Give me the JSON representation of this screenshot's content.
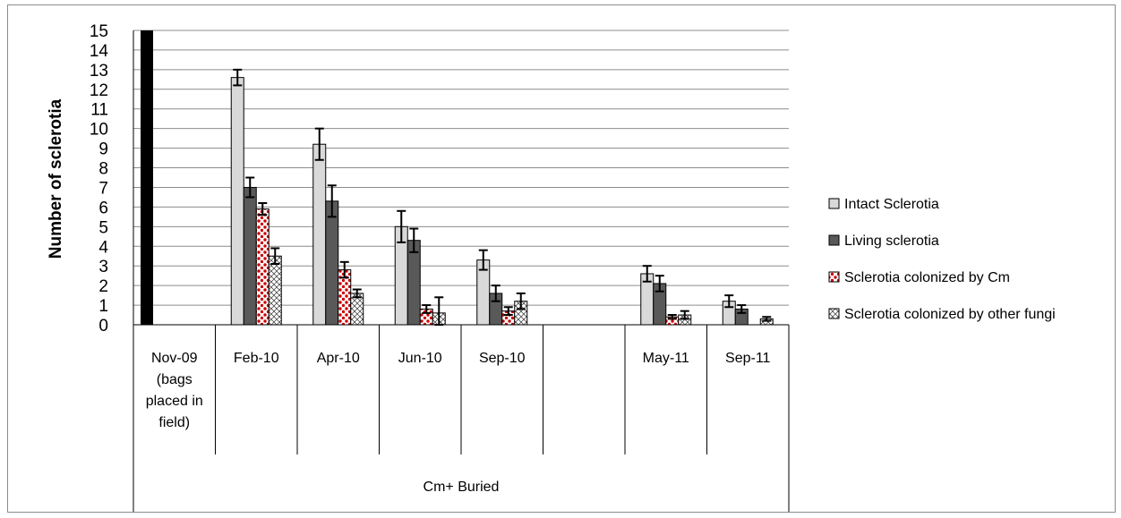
{
  "chart_data": {
    "type": "bar",
    "ylabel": "Number of sclerotia",
    "group_label": "Cm+ Buried",
    "ylim": [
      0,
      15
    ],
    "yticks": [
      0,
      1,
      2,
      3,
      4,
      5,
      6,
      7,
      8,
      9,
      10,
      11,
      12,
      13,
      14,
      15
    ],
    "grid": true,
    "legend_position": "right",
    "categories": [
      {
        "lines": [
          "Nov-09",
          "(bags",
          "placed in",
          "field)"
        ]
      },
      {
        "lines": [
          "Feb-10"
        ]
      },
      {
        "lines": [
          "Apr-10"
        ]
      },
      {
        "lines": [
          "Jun-10"
        ]
      },
      {
        "lines": [
          "Sep-10"
        ]
      },
      {
        "lines": [
          ""
        ]
      },
      {
        "lines": [
          "May-11"
        ]
      },
      {
        "lines": [
          "Sep-11"
        ]
      }
    ],
    "series": [
      {
        "name": "Intact Sclerotia",
        "pattern": "light",
        "values": [
          null,
          12.6,
          9.2,
          5.0,
          3.3,
          null,
          2.6,
          1.2
        ],
        "errors": [
          null,
          0.4,
          0.8,
          0.8,
          0.5,
          null,
          0.4,
          0.3
        ]
      },
      {
        "name": "Living sclerotia",
        "pattern": "dark",
        "values": [
          null,
          7.0,
          6.3,
          4.3,
          1.6,
          null,
          2.1,
          0.8
        ],
        "errors": [
          null,
          0.5,
          0.8,
          0.6,
          0.4,
          null,
          0.4,
          0.2
        ]
      },
      {
        "name": "Sclerotia colonized by Cm",
        "pattern": "dots",
        "values": [
          null,
          5.9,
          2.8,
          0.8,
          0.7,
          null,
          0.4,
          null
        ],
        "errors": [
          null,
          0.3,
          0.4,
          0.2,
          0.2,
          null,
          0.1,
          null
        ]
      },
      {
        "name": "Sclerotia colonized by other fungi",
        "pattern": "cross",
        "values": [
          null,
          3.5,
          1.6,
          0.6,
          1.2,
          null,
          0.5,
          0.3
        ],
        "errors": [
          null,
          0.4,
          0.2,
          0.8,
          0.4,
          null,
          0.2,
          0.1
        ]
      }
    ],
    "extra_bar": {
      "category_index": 0,
      "value": 15,
      "color": "#000000"
    },
    "colors": {
      "light": "#d9d9d9",
      "dark": "#595959",
      "dots": "#cc0000",
      "cross": "#333333",
      "grid": "#8c8c8c"
    }
  }
}
